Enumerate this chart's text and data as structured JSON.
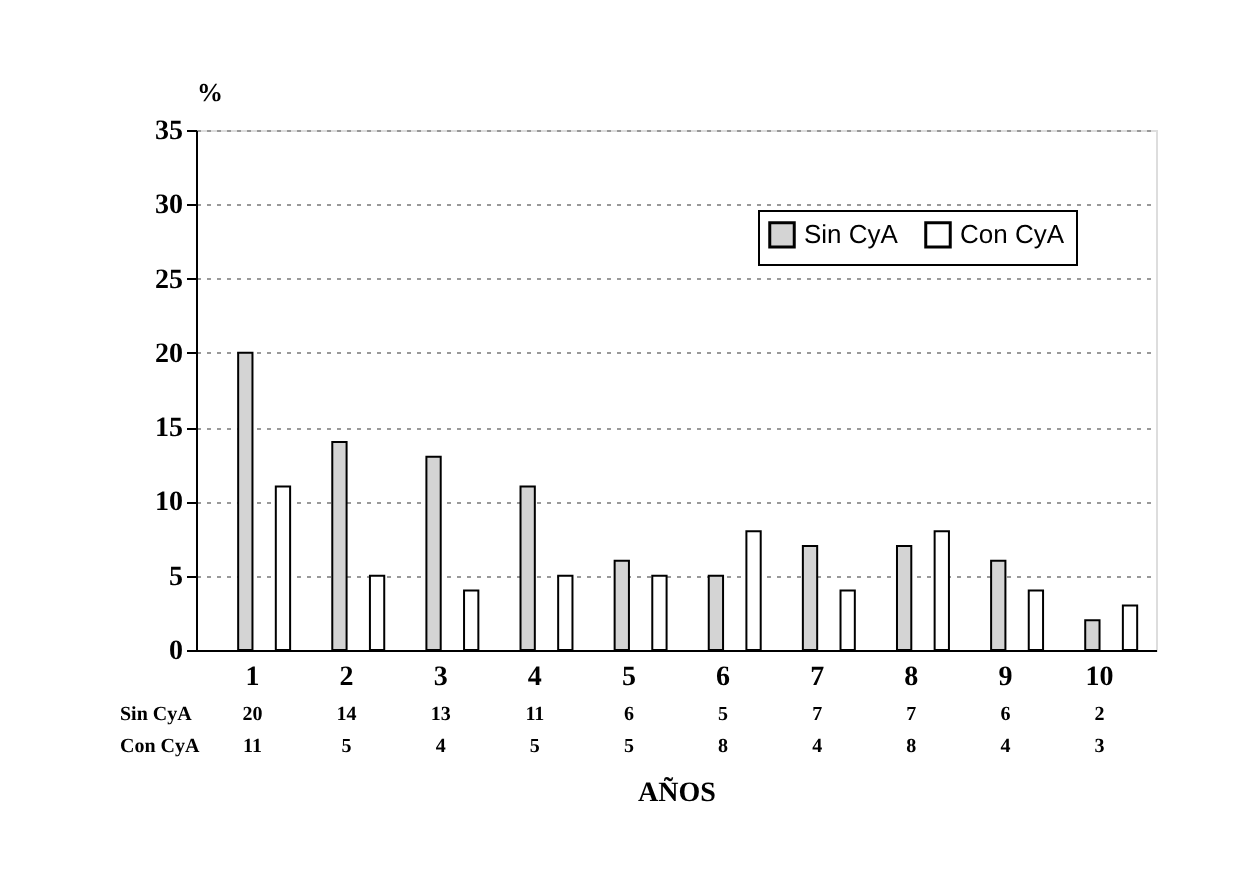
{
  "chart_data": {
    "type": "bar",
    "xlabel": "AÑOS",
    "ylabel": "%",
    "categories": [
      "1",
      "2",
      "3",
      "4",
      "5",
      "6",
      "7",
      "8",
      "9",
      "10"
    ],
    "series": [
      {
        "name": "Sin CyA",
        "color": "#d4d4d4",
        "values": [
          20,
          14,
          13,
          11,
          6,
          5,
          7,
          7,
          6,
          2
        ]
      },
      {
        "name": "Con CyA",
        "color": "#ffffff",
        "values": [
          11,
          5,
          4,
          5,
          5,
          8,
          4,
          8,
          4,
          3
        ]
      }
    ],
    "ylim": [
      0,
      35
    ],
    "yticks": [
      0,
      5,
      10,
      15,
      20,
      25,
      30,
      35
    ],
    "grid": "y",
    "legend": "top right",
    "data_labels": true
  }
}
